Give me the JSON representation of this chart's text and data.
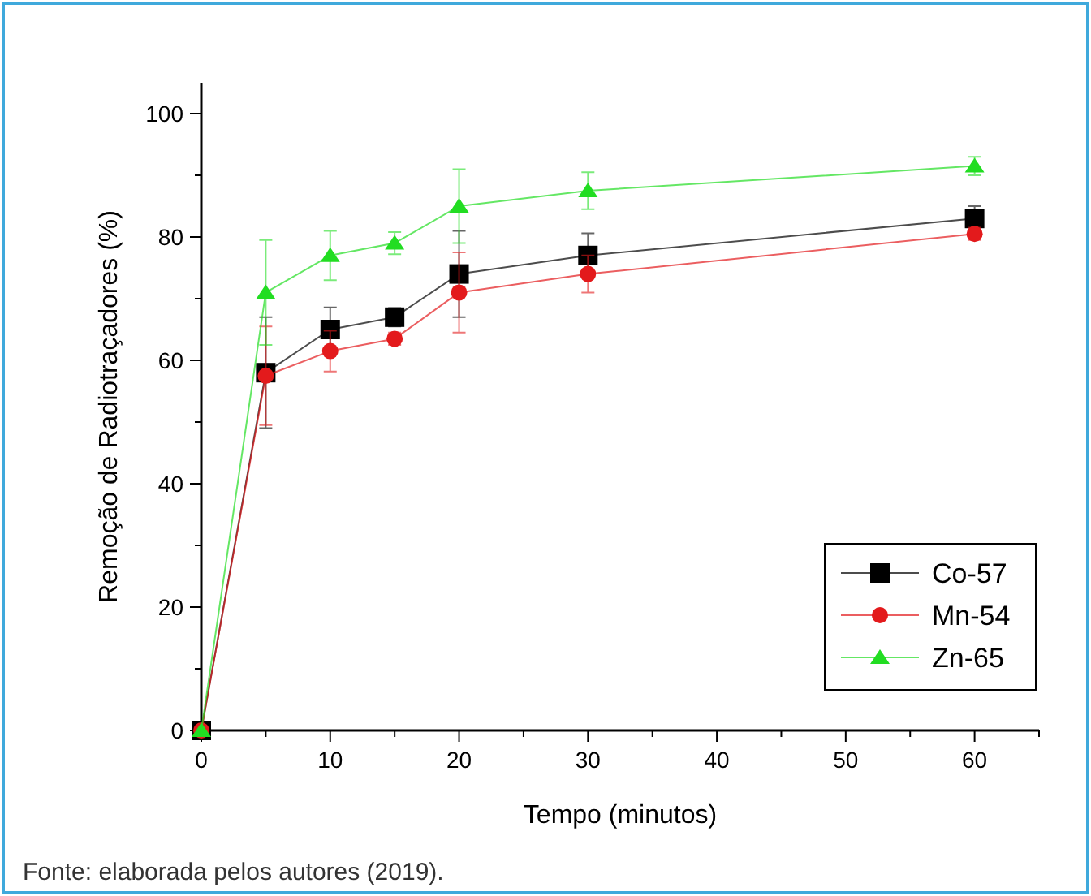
{
  "chart_data": {
    "type": "line",
    "xlabel": "Tempo (minutos)",
    "ylabel": "Remoção de Radiotraçadores (%)",
    "x": [
      0,
      5,
      10,
      15,
      20,
      30,
      60
    ],
    "xlim": [
      0,
      65
    ],
    "xticks": [
      0,
      {
        "value": 5,
        "label": null
      },
      10,
      {
        "value": 15,
        "label": null
      },
      20,
      {
        "value": 25,
        "label": null
      },
      30,
      {
        "value": 35,
        "label": null
      },
      40,
      {
        "value": 45,
        "label": null
      },
      50,
      {
        "value": 55,
        "label": null
      },
      60,
      {
        "value": 65,
        "label": null
      }
    ],
    "ylim": [
      0,
      105
    ],
    "yticks": [
      0,
      {
        "value": 10,
        "label": null
      },
      20,
      {
        "value": 30,
        "label": null
      },
      40,
      {
        "value": 50,
        "label": null
      },
      60,
      {
        "value": 70,
        "label": null
      },
      80,
      {
        "value": 90,
        "label": null
      },
      100
    ],
    "series": [
      {
        "name": "Co-57",
        "color": "#000000",
        "marker": "square",
        "values": [
          0,
          58,
          65,
          67,
          74,
          77,
          83
        ],
        "errors": [
          null,
          9,
          3.6,
          1.5,
          7,
          3.6,
          2
        ]
      },
      {
        "name": "Mn-54",
        "color": "#e31a1c",
        "marker": "circle",
        "values": [
          0,
          57.5,
          61.5,
          63.5,
          71,
          74,
          80.5
        ],
        "errors": [
          null,
          8,
          3.3,
          1,
          6.5,
          3,
          1
        ]
      },
      {
        "name": "Zn-65",
        "color": "#22dd22",
        "marker": "triangle",
        "values": [
          0,
          71,
          77,
          79,
          85,
          87.5,
          91.5
        ],
        "errors": [
          null,
          8.5,
          4,
          1.8,
          6,
          3,
          1.5
        ]
      }
    ],
    "legend": "bottom right",
    "grid": false,
    "annotations": [
      "Fonte: elaborada pelos autores (2019)."
    ]
  }
}
